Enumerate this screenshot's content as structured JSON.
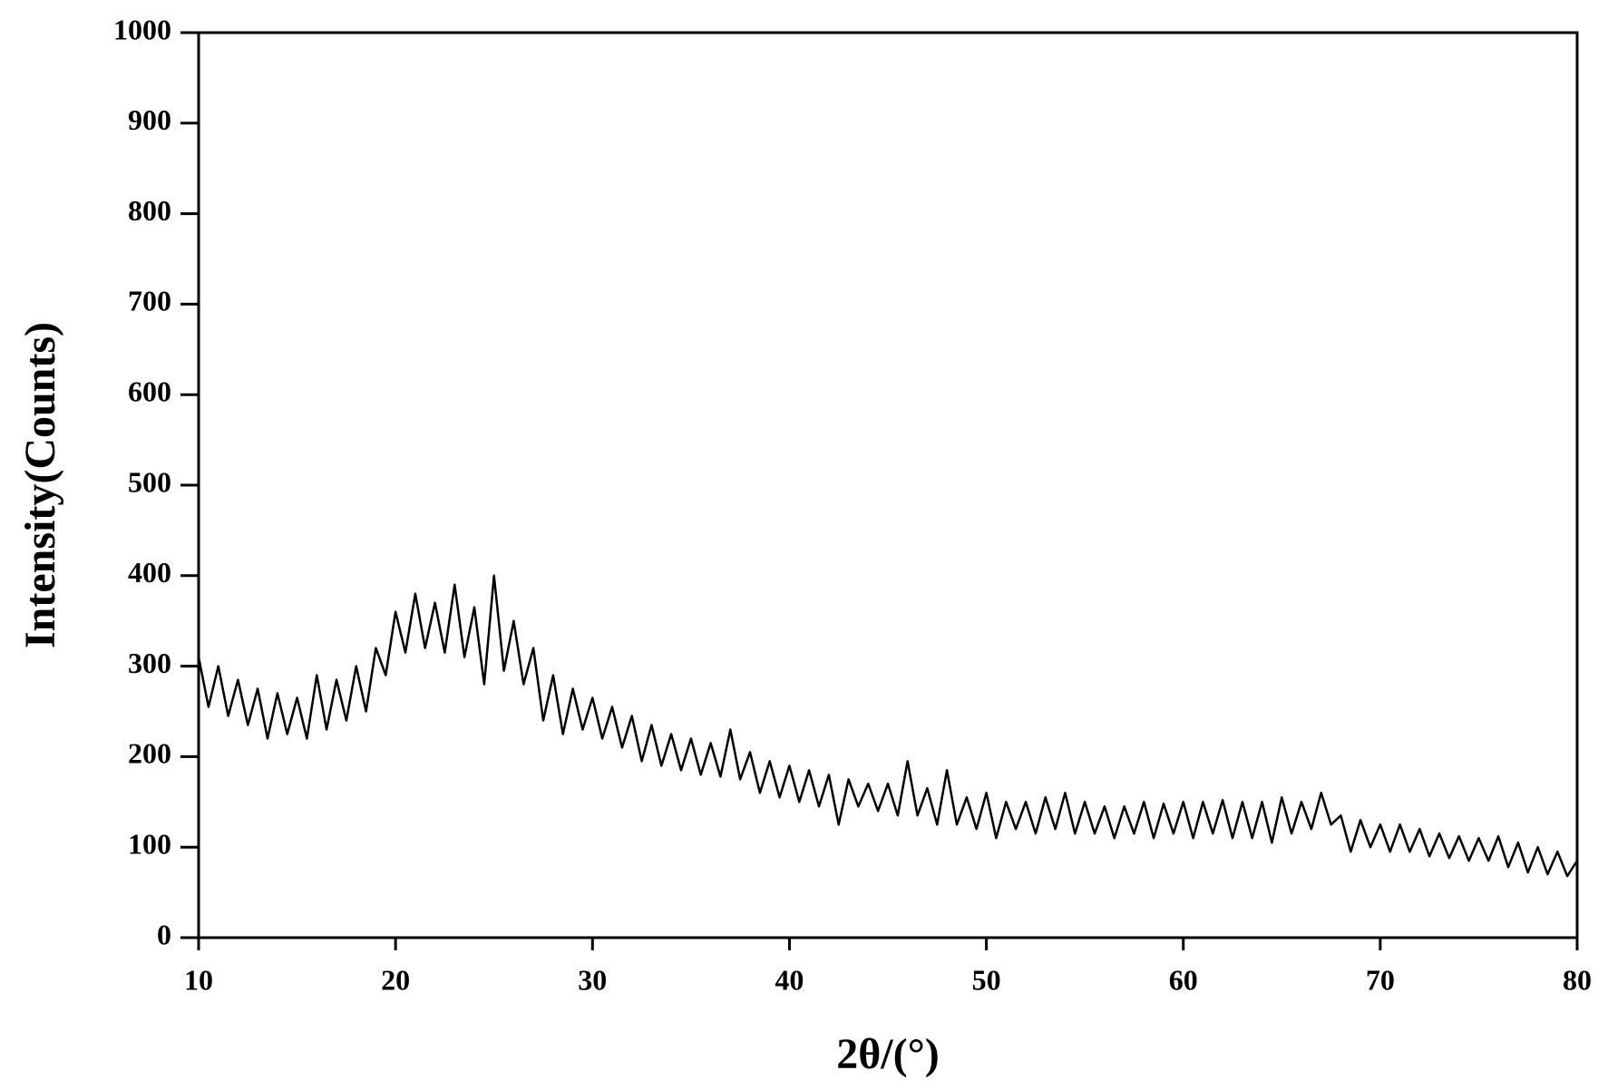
{
  "chart_data": {
    "type": "line",
    "xlabel": "2θ/(°)",
    "ylabel": "Intensity(Counts)",
    "xlim": [
      10,
      80
    ],
    "xticks": [
      10,
      20,
      30,
      40,
      50,
      60,
      70,
      80
    ],
    "ylim": [
      0,
      1000
    ],
    "yticks": [
      0,
      100,
      200,
      300,
      400,
      500,
      600,
      700,
      800,
      900,
      1000
    ],
    "x": [
      10,
      10.5,
      11,
      11.5,
      12,
      12.5,
      13,
      13.5,
      14,
      14.5,
      15,
      15.5,
      16,
      16.5,
      17,
      17.5,
      18,
      18.5,
      19,
      19.5,
      20,
      20.5,
      21,
      21.5,
      22,
      22.5,
      23,
      23.5,
      24,
      24.5,
      25,
      25.5,
      26,
      26.5,
      27,
      27.5,
      28,
      28.5,
      29,
      29.5,
      30,
      30.5,
      31,
      31.5,
      32,
      32.5,
      33,
      33.5,
      34,
      34.5,
      35,
      35.5,
      36,
      36.5,
      37,
      37.5,
      38,
      38.5,
      39,
      39.5,
      40,
      40.5,
      41,
      41.5,
      42,
      42.5,
      43,
      43.5,
      44,
      44.5,
      45,
      45.5,
      46,
      46.5,
      47,
      47.5,
      48,
      48.5,
      49,
      49.5,
      50,
      50.5,
      51,
      51.5,
      52,
      52.5,
      53,
      53.5,
      54,
      54.5,
      55,
      55.5,
      56,
      56.5,
      57,
      57.5,
      58,
      58.5,
      59,
      59.5,
      60,
      60.5,
      61,
      61.5,
      62,
      62.5,
      63,
      63.5,
      64,
      64.5,
      65,
      65.5,
      66,
      66.5,
      67,
      67.5,
      68,
      68.5,
      69,
      69.5,
      70,
      70.5,
      71,
      71.5,
      72,
      72.5,
      73,
      73.5,
      74,
      74.5,
      75,
      75.5,
      76,
      76.5,
      77,
      77.5,
      78,
      78.5,
      79,
      79.5,
      80
    ],
    "series": [
      {
        "color": "#000000",
        "values": [
          310,
          255,
          300,
          245,
          285,
          235,
          275,
          220,
          270,
          225,
          265,
          220,
          290,
          230,
          285,
          240,
          300,
          250,
          320,
          290,
          360,
          315,
          380,
          320,
          370,
          315,
          390,
          310,
          365,
          280,
          400,
          295,
          350,
          280,
          320,
          240,
          290,
          225,
          275,
          230,
          265,
          220,
          255,
          210,
          245,
          195,
          235,
          190,
          225,
          185,
          220,
          180,
          215,
          178,
          230,
          175,
          205,
          160,
          195,
          155,
          190,
          150,
          185,
          145,
          180,
          125,
          175,
          145,
          170,
          140,
          170,
          135,
          195,
          135,
          165,
          125,
          185,
          125,
          155,
          120,
          160,
          110,
          150,
          120,
          150,
          115,
          155,
          120,
          160,
          115,
          150,
          115,
          145,
          110,
          145,
          115,
          150,
          110,
          148,
          115,
          150,
          110,
          150,
          115,
          152,
          110,
          150,
          110,
          150,
          105,
          155,
          115,
          150,
          120,
          160,
          125,
          135,
          95,
          130,
          100,
          125,
          95,
          125,
          95,
          120,
          90,
          115,
          88,
          112,
          85,
          110,
          85,
          112,
          78,
          105,
          72,
          100,
          70,
          95,
          68,
          85
        ]
      }
    ]
  }
}
